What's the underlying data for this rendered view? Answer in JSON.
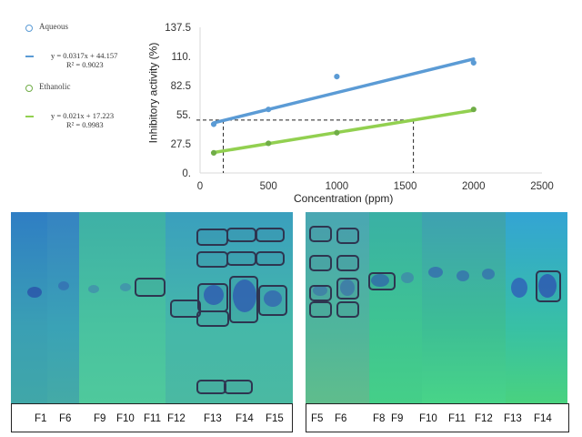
{
  "legend": {
    "aqueous": {
      "label": "Aqueous",
      "eq": "y = 0.0317x + 44.157",
      "r2": "R² = 0.9023",
      "color": "#5b9bd5"
    },
    "ethanolic": {
      "label": "Ethanolic",
      "eq": "y = 0.021x + 17.223",
      "r2": "R² = 0.9983",
      "color": "#70ad47"
    }
  },
  "chart_data": {
    "type": "scatter",
    "xlabel": "Concentration (ppm)",
    "ylabel": "Inhibitory  activity (%)",
    "xlim": [
      0,
      2500
    ],
    "ylim": [
      0,
      137.5
    ],
    "xticks": [
      "0",
      "500",
      "1000",
      "1500",
      "2000",
      "2500"
    ],
    "yticks": [
      "0.",
      "27.5",
      "55.",
      "82.5",
      "110.",
      "137.5"
    ],
    "series": [
      {
        "name": "Aqueous",
        "color": "#5b9bd5",
        "x": [
          100,
          500,
          1000,
          2000
        ],
        "y": [
          46,
          60,
          91,
          104
        ],
        "trend": {
          "slope": 0.0317,
          "intercept": 44.157,
          "x": [
            100,
            2000
          ],
          "color": "#5b9bd5"
        }
      },
      {
        "name": "Ethanolic",
        "color": "#70ad47",
        "x": [
          100,
          500,
          1000,
          2000
        ],
        "y": [
          19,
          28,
          38,
          60
        ],
        "trend": {
          "slope": 0.021,
          "intercept": 17.223,
          "x": [
            100,
            2000
          ],
          "color": "#92d050"
        }
      }
    ],
    "reference": {
      "y": 50,
      "x": [
        170,
        1560
      ]
    },
    "grid": false,
    "legend_position": "left"
  },
  "plates": {
    "left": {
      "labels": [
        "F1",
        "F6",
        "F9",
        "F10",
        "F11",
        "F12",
        "F13",
        "F14",
        "F15"
      ]
    },
    "right": {
      "labels": [
        "F5",
        "F6",
        "F8",
        "F9",
        "F10",
        "F11",
        "F12",
        "F13",
        "F14"
      ]
    }
  }
}
